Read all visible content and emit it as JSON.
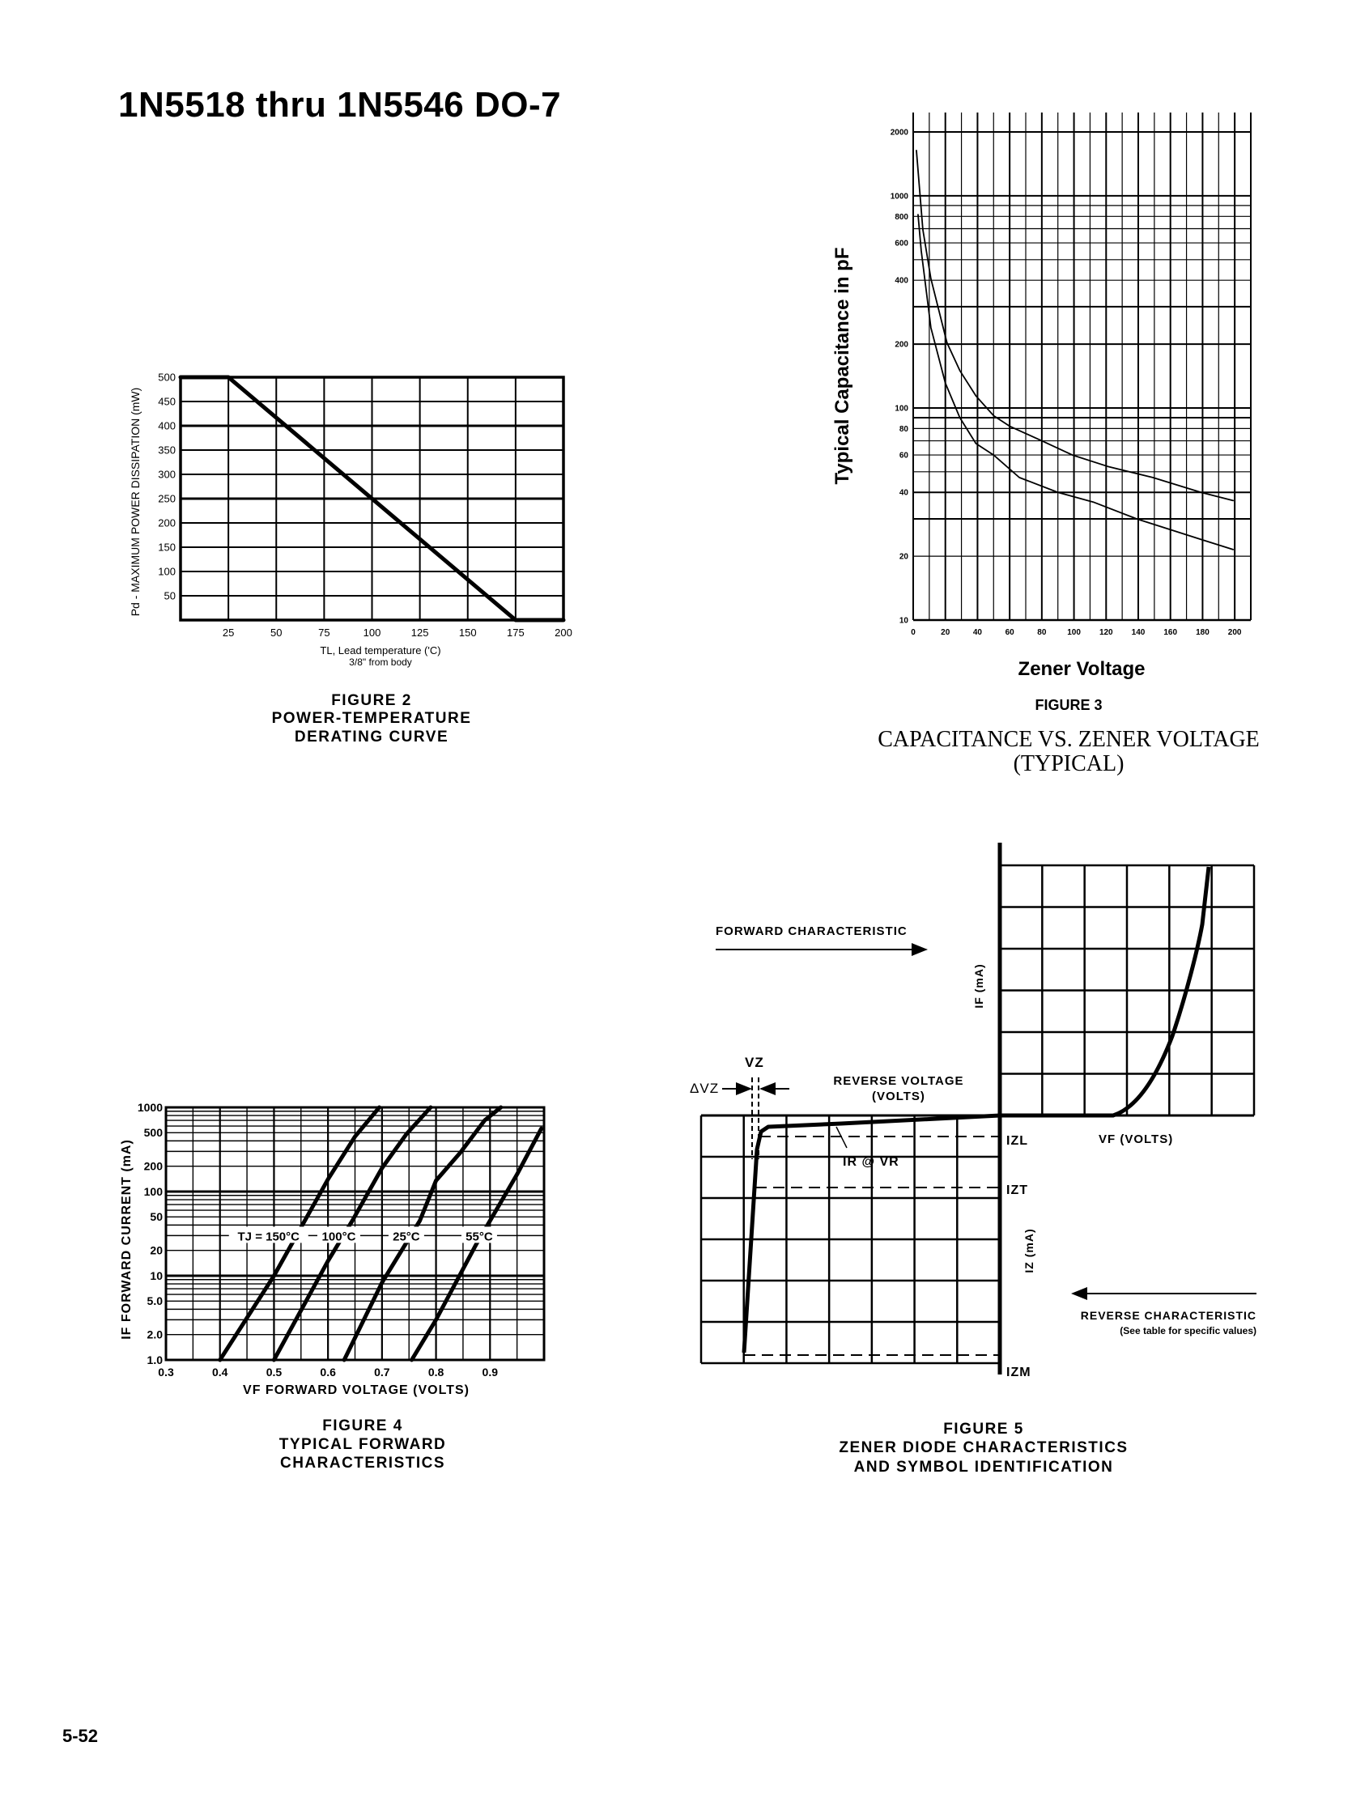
{
  "header": {
    "title": "1N5518 thru 1N5546  DO-7"
  },
  "page_number": "5-52",
  "chart_data": [
    {
      "type": "line",
      "figure_label": "FIGURE 2",
      "caption": [
        "POWER-TEMPERATURE",
        "DERATING CURVE"
      ],
      "ylabel": "Pd - MAXIMUM POWER DISSIPATION (mW)",
      "xlabel": [
        "TL, Lead temperature ('C)",
        "3/8\" from body"
      ],
      "xlim": [
        0,
        200
      ],
      "ylim": [
        0,
        500
      ],
      "x_ticks": [
        25,
        50,
        75,
        100,
        125,
        150,
        175,
        200
      ],
      "y_ticks": [
        50,
        100,
        150,
        200,
        250,
        300,
        350,
        400,
        450,
        500
      ],
      "grid": true,
      "series": [
        {
          "x": [
            0,
            25,
            175,
            200
          ],
          "y": [
            500,
            500,
            0,
            0
          ]
        }
      ]
    },
    {
      "type": "line",
      "figure_label": "FIGURE 3",
      "caption": [
        "CAPACITANCE VS. ZENER VOLTAGE",
        "(TYPICAL)"
      ],
      "ylabel": "Typical Capacitance in pF",
      "xlabel": "Zener Voltage",
      "xlim": [
        0,
        210
      ],
      "ylim": [
        10,
        2470
      ],
      "y_scale": "log",
      "x_ticks": [
        0,
        20,
        40,
        60,
        80,
        100,
        120,
        140,
        160,
        180,
        200
      ],
      "y_ticks": [
        10,
        20,
        40,
        60,
        80,
        100,
        200,
        400,
        600,
        800,
        1000,
        2000
      ],
      "grid": true,
      "series": [
        {
          "x": [
            2,
            6,
            11,
            21,
            29,
            39,
            50,
            60,
            80,
            99,
            121,
            149,
            179,
            199
          ],
          "y": [
            1635,
            693,
            407,
            203,
            150,
            114,
            92,
            82,
            70,
            60,
            53,
            47,
            40,
            36.6
          ]
        },
        {
          "x": [
            3,
            5,
            11,
            20,
            29,
            39,
            50,
            66,
            90,
            112,
            139,
            179,
            199
          ],
          "y": [
            815,
            550,
            239,
            131,
            90,
            68,
            60,
            47,
            40,
            36,
            30,
            24,
            21.5
          ]
        }
      ]
    },
    {
      "type": "line",
      "figure_label": "FIGURE 4",
      "caption": [
        "TYPICAL FORWARD",
        "CHARACTERISTICS"
      ],
      "ylabel": "IF  FORWARD CURRENT (mA)",
      "xlabel": "VF  FORWARD VOLTAGE (VOLTS)",
      "xlim": [
        0.3,
        1.0
      ],
      "ylim": [
        1,
        1000
      ],
      "y_scale": "log",
      "x_ticks": [
        0.3,
        0.4,
        0.5,
        0.6,
        0.7,
        0.8,
        0.9
      ],
      "x_tick_labels": [
        "0.3",
        "0.4",
        "0.5",
        "0.6",
        "0.7",
        "0.8",
        "0.9"
      ],
      "y_ticks": [
        1,
        2,
        5,
        10,
        20,
        50,
        100,
        200,
        500,
        1000
      ],
      "y_tick_labels": [
        "1.0",
        "2.0",
        "5.0",
        "10",
        "20",
        "50",
        "100",
        "200",
        "500",
        "1000"
      ],
      "grid": true,
      "series": [
        {
          "name": "TJ = 150°C",
          "x": [
            0.4,
            0.5,
            0.6,
            0.65,
            0.695
          ],
          "y": [
            1,
            10,
            140,
            450,
            1000
          ]
        },
        {
          "name": "100°C",
          "x": [
            0.5,
            0.6,
            0.645,
            0.7,
            0.745,
            0.79
          ],
          "y": [
            1,
            15,
            45,
            190,
            480,
            1000
          ]
        },
        {
          "name": "25°C",
          "x": [
            0.63,
            0.7,
            0.77,
            0.8,
            0.845,
            0.89,
            0.92
          ],
          "y": [
            1,
            8.3,
            45,
            135,
            290,
            700,
            1000
          ]
        },
        {
          "name": "55°C",
          "x": [
            0.755,
            0.8,
            0.875,
            0.9,
            0.95,
            0.995
          ],
          "y": [
            1,
            3,
            24,
            45,
            160,
            560
          ]
        }
      ]
    }
  ],
  "figure5": {
    "figure_label": "FIGURE 5",
    "caption": [
      "ZENER DIODE CHARACTERISTICS",
      "AND SYMBOL IDENTIFICATION"
    ],
    "forward_characteristic": "FORWARD CHARACTERISTIC",
    "if_axis": "IF (mA)",
    "vz": "VZ",
    "delta_vz": "ΔVZ",
    "reverse_voltage": [
      "REVERSE VOLTAGE",
      "(VOLTS)"
    ],
    "izl": "IZL",
    "vf_volts": "VF (VOLTS)",
    "ir_at_vr": "IR @ VR",
    "izt": "IZT",
    "iz_axis": "IZ (mA)",
    "reverse_characteristic": "REVERSE CHARACTERISTIC",
    "see_table": "(See table for specific values)",
    "izm": "IZM"
  }
}
